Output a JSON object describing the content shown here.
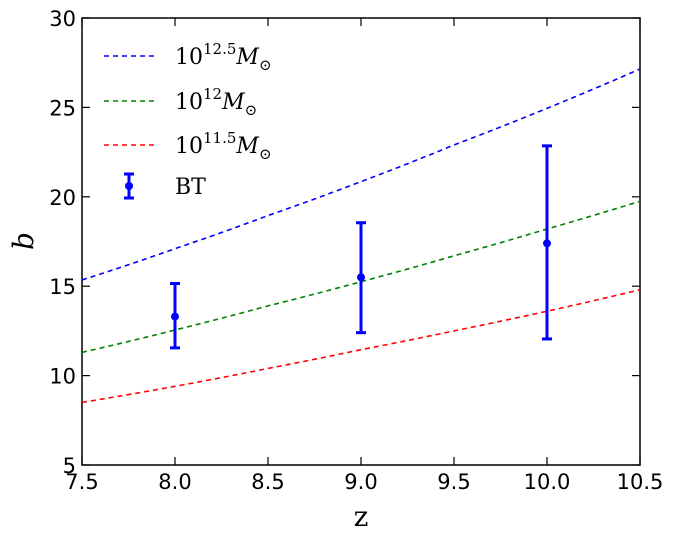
{
  "chart_data": {
    "type": "line",
    "xlabel": "z",
    "ylabel": "b",
    "xlim": [
      7.5,
      10.5
    ],
    "ylim": [
      5,
      30
    ],
    "xticks": [
      "7.5",
      "8.0",
      "8.5",
      "9.0",
      "9.5",
      "10.0",
      "10.5"
    ],
    "yticks": [
      "5",
      "10",
      "15",
      "20",
      "25",
      "30"
    ],
    "grid": false,
    "legend_position": "top-left",
    "series": [
      {
        "name": "10^{12.5} M_⊙",
        "legend_base": "10",
        "legend_exp": "12.5",
        "legend_unit": "M",
        "legend_sub": "⊙",
        "style": "dashed",
        "color": "#0000ff",
        "x": [
          7.5,
          8.0,
          8.5,
          9.0,
          9.5,
          10.0,
          10.5
        ],
        "y": [
          15.35,
          17.1,
          18.95,
          20.85,
          22.9,
          24.95,
          27.15
        ]
      },
      {
        "name": "10^{12} M_⊙",
        "legend_base": "10",
        "legend_exp": "12",
        "legend_unit": "M",
        "legend_sub": "⊙",
        "style": "dashed",
        "color": "#008000",
        "x": [
          7.5,
          8.0,
          8.5,
          9.0,
          9.5,
          10.0,
          10.5
        ],
        "y": [
          11.3,
          12.55,
          13.9,
          15.25,
          16.7,
          18.2,
          19.75
        ]
      },
      {
        "name": "10^{11.5} M_⊙",
        "legend_base": "10",
        "legend_exp": "11.5",
        "legend_unit": "M",
        "legend_sub": "⊙",
        "style": "dashed",
        "color": "#ff0000",
        "x": [
          7.5,
          8.0,
          8.5,
          9.0,
          9.5,
          10.0,
          10.5
        ],
        "y": [
          8.5,
          9.4,
          10.4,
          11.45,
          12.5,
          13.6,
          14.8
        ]
      },
      {
        "name": "BT",
        "type": "errorbar",
        "color": "#0000ff",
        "x": [
          8.0,
          9.0,
          10.0
        ],
        "y": [
          13.3,
          15.5,
          17.4
        ],
        "yerr_low": [
          11.55,
          12.4,
          12.05
        ],
        "yerr_high": [
          15.15,
          18.55,
          22.85
        ]
      }
    ]
  }
}
